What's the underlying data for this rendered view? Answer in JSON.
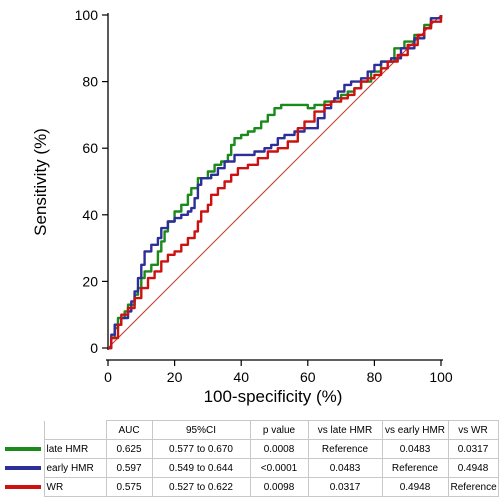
{
  "chart_data": {
    "type": "line",
    "xlabel": "100-specificity (%)",
    "ylabel": "Sensitivity (%)",
    "xlim": [
      0,
      100
    ],
    "ylim": [
      0,
      100
    ],
    "x_ticks": [
      "0",
      "20",
      "40",
      "60",
      "80",
      "100"
    ],
    "y_ticks": [
      "0",
      "20",
      "40",
      "60",
      "80",
      "100"
    ],
    "grid": false,
    "legend": "table below chart",
    "reference_line": {
      "color": "#c0392b",
      "from": [
        0,
        0
      ],
      "to": [
        100,
        100
      ]
    },
    "series": [
      {
        "name": "late HMR",
        "color": "#1a8a1a",
        "points": [
          [
            0,
            0
          ],
          [
            1,
            3
          ],
          [
            2,
            6
          ],
          [
            3,
            9
          ],
          [
            5,
            11
          ],
          [
            6,
            13
          ],
          [
            8,
            16
          ],
          [
            9,
            18
          ],
          [
            10,
            21
          ],
          [
            11,
            23
          ],
          [
            13,
            25
          ],
          [
            15,
            29
          ],
          [
            16,
            32
          ],
          [
            17,
            35
          ],
          [
            18,
            38
          ],
          [
            20,
            41
          ],
          [
            22,
            43
          ],
          [
            24,
            46
          ],
          [
            25,
            48
          ],
          [
            27,
            51
          ],
          [
            30,
            53
          ],
          [
            32,
            55
          ],
          [
            34,
            56
          ],
          [
            36,
            58
          ],
          [
            37,
            61
          ],
          [
            38,
            63
          ],
          [
            40,
            64
          ],
          [
            42,
            65
          ],
          [
            44,
            66
          ],
          [
            46,
            68
          ],
          [
            48,
            70
          ],
          [
            50,
            72
          ],
          [
            52,
            73
          ],
          [
            55,
            73
          ],
          [
            58,
            73
          ],
          [
            60,
            72
          ],
          [
            62,
            73
          ],
          [
            65,
            74
          ],
          [
            68,
            75
          ],
          [
            70,
            76
          ],
          [
            72,
            77
          ],
          [
            74,
            78
          ],
          [
            76,
            80
          ],
          [
            79,
            83
          ],
          [
            82,
            86
          ],
          [
            86,
            90
          ],
          [
            89,
            92
          ],
          [
            92,
            94
          ],
          [
            95,
            97
          ],
          [
            97,
            99
          ],
          [
            100,
            100
          ]
        ]
      },
      {
        "name": "early HMR",
        "color": "#2e2e9a",
        "points": [
          [
            0,
            0
          ],
          [
            1,
            4
          ],
          [
            2,
            7
          ],
          [
            4,
            9
          ],
          [
            6,
            11
          ],
          [
            7,
            14
          ],
          [
            8,
            17
          ],
          [
            9,
            21
          ],
          [
            10,
            25
          ],
          [
            11,
            29
          ],
          [
            13,
            31
          ],
          [
            15,
            33
          ],
          [
            16,
            36
          ],
          [
            18,
            38
          ],
          [
            20,
            39
          ],
          [
            22,
            40
          ],
          [
            24,
            41
          ],
          [
            25,
            42
          ],
          [
            26,
            45
          ],
          [
            27,
            49
          ],
          [
            28,
            51
          ],
          [
            31,
            52
          ],
          [
            33,
            54
          ],
          [
            35,
            56
          ],
          [
            38,
            58
          ],
          [
            41,
            58
          ],
          [
            44,
            59
          ],
          [
            47,
            60
          ],
          [
            49,
            61
          ],
          [
            51,
            63
          ],
          [
            53,
            64
          ],
          [
            56,
            65
          ],
          [
            59,
            66
          ],
          [
            61,
            66
          ],
          [
            63,
            69
          ],
          [
            65,
            72
          ],
          [
            67,
            74
          ],
          [
            68,
            75
          ],
          [
            69,
            77
          ],
          [
            71,
            79
          ],
          [
            73,
            80
          ],
          [
            76,
            81
          ],
          [
            78,
            83
          ],
          [
            80,
            85
          ],
          [
            82,
            86
          ],
          [
            85,
            87
          ],
          [
            88,
            90
          ],
          [
            92,
            93
          ],
          [
            95,
            96
          ],
          [
            97,
            99
          ],
          [
            100,
            100
          ]
        ]
      },
      {
        "name": "WR",
        "color": "#cc1111",
        "points": [
          [
            0,
            0
          ],
          [
            1,
            3
          ],
          [
            3,
            7
          ],
          [
            4,
            10
          ],
          [
            6,
            12
          ],
          [
            8,
            15
          ],
          [
            10,
            18
          ],
          [
            12,
            21
          ],
          [
            14,
            23
          ],
          [
            16,
            26
          ],
          [
            18,
            28
          ],
          [
            20,
            29
          ],
          [
            22,
            31
          ],
          [
            24,
            33
          ],
          [
            26,
            35
          ],
          [
            27,
            38
          ],
          [
            28,
            41
          ],
          [
            30,
            43
          ],
          [
            31,
            46
          ],
          [
            33,
            48
          ],
          [
            35,
            50
          ],
          [
            37,
            52
          ],
          [
            39,
            54
          ],
          [
            42,
            55
          ],
          [
            45,
            57
          ],
          [
            48,
            59
          ],
          [
            51,
            60
          ],
          [
            54,
            62
          ],
          [
            57,
            66
          ],
          [
            59,
            68
          ],
          [
            62,
            71
          ],
          [
            65,
            73
          ],
          [
            67,
            74
          ],
          [
            70,
            75
          ],
          [
            72,
            76
          ],
          [
            74,
            78
          ],
          [
            76,
            80
          ],
          [
            78,
            81
          ],
          [
            80,
            82
          ],
          [
            82,
            84
          ],
          [
            84,
            86
          ],
          [
            87,
            88
          ],
          [
            90,
            91
          ],
          [
            93,
            94
          ],
          [
            95,
            96
          ],
          [
            97,
            98
          ],
          [
            100,
            100
          ]
        ]
      }
    ]
  },
  "stats_table": {
    "headers": [
      "AUC",
      "95%CI",
      "p value",
      "vs late HMR",
      "vs early HMR",
      "vs WR"
    ],
    "rows": [
      {
        "label": "late HMR",
        "color": "#1a8a1a",
        "cells": [
          "0.625",
          "0.577 to 0.670",
          "0.0008",
          "Reference",
          "0.0483",
          "0.0317"
        ]
      },
      {
        "label": "early HMR",
        "color": "#2e2e9a",
        "cells": [
          "0.597",
          "0.549 to 0.644",
          "<0.0001",
          "0.0483",
          "Reference",
          "0.4948"
        ]
      },
      {
        "label": "WR",
        "color": "#cc1111",
        "cells": [
          "0.575",
          "0.527 to 0.622",
          "0.0098",
          "0.0317",
          "0.4948",
          "Reference"
        ]
      }
    ]
  }
}
